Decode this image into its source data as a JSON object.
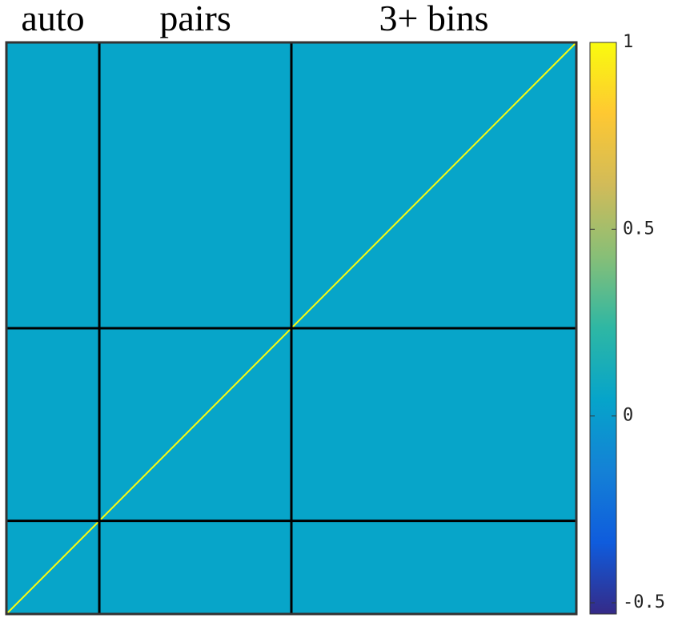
{
  "chart_data": {
    "type": "heatmap",
    "blocks": [
      "auto",
      "pairs",
      "3+ bins"
    ],
    "block_bounds": [
      0,
      0.163,
      0.5,
      1
    ],
    "background_value": 0.05,
    "diagonal_value": 1,
    "clim": [
      -0.53,
      1
    ],
    "cticks": [
      1,
      0.5,
      0,
      -0.5
    ],
    "colormap": [
      "#352a87",
      "#0f5cdd",
      "#1481d6",
      "#06a4ca",
      "#2eb7a4",
      "#87bf77",
      "#d1bb59",
      "#fec832",
      "#f9fb0e"
    ]
  }
}
